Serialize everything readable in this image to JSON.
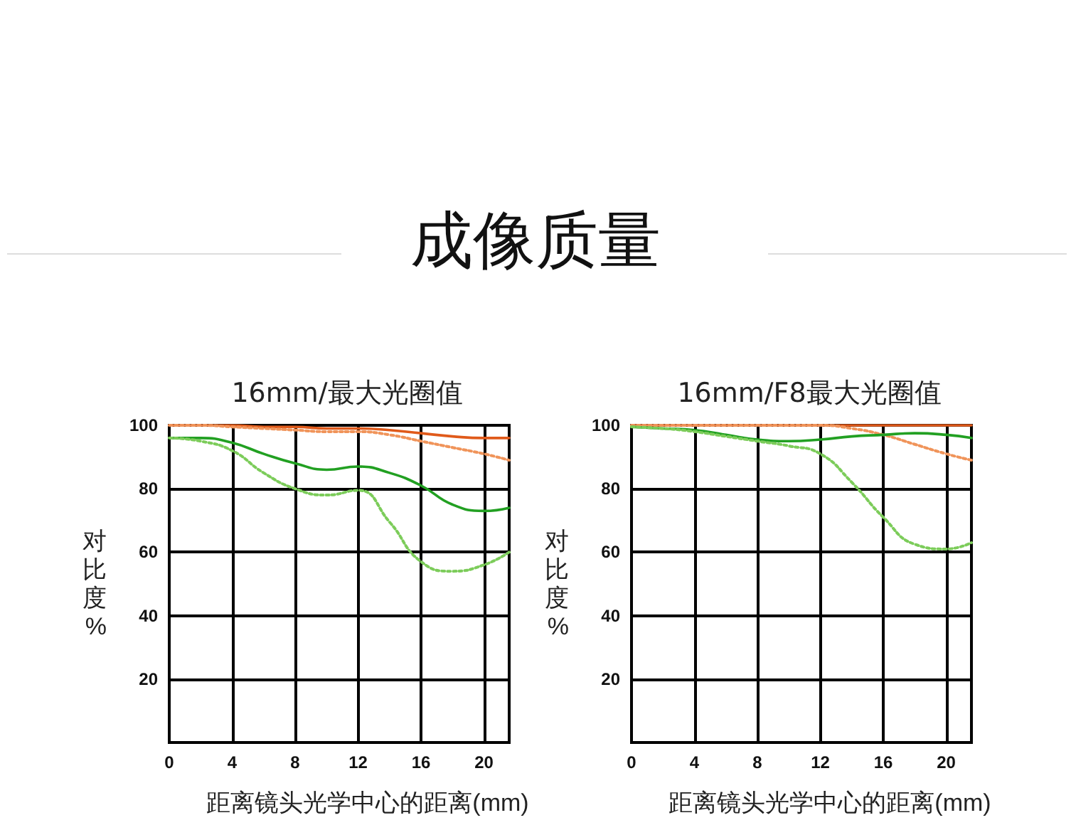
{
  "chart_data": [
    {
      "type": "other",
      "title": "成像质量"
    },
    {
      "type": "line",
      "title": "16mm/最大光圈值",
      "xlabel": "距离镜头光学中心的距离(mm)",
      "ylabel": "对比度%",
      "x": [
        0,
        2,
        4,
        6,
        8,
        10,
        12,
        14,
        16,
        18,
        20,
        21.6
      ],
      "xlim": [
        0,
        21.6
      ],
      "xticks": [
        0,
        4,
        8,
        12,
        16,
        20
      ],
      "ylim": [
        0,
        100
      ],
      "yticks": [
        {
          "value": 0,
          "label": null
        },
        20,
        40,
        60,
        80,
        100
      ],
      "grid": true,
      "marker": "none",
      "series": [
        {
          "color": "#e05a1a",
          "line_style": "solid",
          "values": [
            100,
            100,
            100,
            99.5,
            99.5,
            99,
            99,
            98.5,
            97.5,
            96.5,
            96,
            96
          ]
        },
        {
          "color": "#f0945a",
          "line_style": "dotted",
          "values": [
            100,
            100,
            99.5,
            99,
            98.5,
            98,
            98,
            97,
            95,
            93,
            91,
            89
          ]
        },
        {
          "color": "#22a022",
          "line_style": "solid",
          "values": [
            96,
            96,
            94.5,
            91,
            88,
            86,
            87,
            85,
            81,
            75,
            73,
            74
          ]
        },
        {
          "color": "#7ccc5a",
          "line_style": "dotted",
          "values": [
            96,
            95,
            92,
            85,
            80,
            78,
            79.5,
            69.5,
            57,
            54,
            56,
            60
          ]
        }
      ]
    },
    {
      "type": "line",
      "title": "16mm/F8最大光圈值",
      "xlabel": "距离镜头光学中心的距离(mm)",
      "ylabel": "对比度%",
      "x": [
        0,
        2,
        4,
        6,
        8,
        10,
        12,
        14,
        16,
        18,
        20,
        21.6
      ],
      "xlim": [
        0,
        21.6
      ],
      "xticks": [
        0,
        4,
        8,
        12,
        16,
        20
      ],
      "ylim": [
        0,
        100
      ],
      "yticks": [
        {
          "value": 0,
          "label": null
        },
        20,
        40,
        60,
        80,
        100
      ],
      "grid": true,
      "marker": "none",
      "series": [
        {
          "color": "#e05a1a",
          "line_style": "solid",
          "values": [
            100,
            100,
            100,
            100,
            100,
            100,
            100,
            100,
            100,
            100,
            100,
            100
          ]
        },
        {
          "color": "#f0945a",
          "line_style": "dotted",
          "values": [
            100,
            100,
            100,
            100,
            100,
            100,
            100,
            99,
            97,
            94,
            91,
            89
          ]
        },
        {
          "color": "#22a022",
          "line_style": "solid",
          "values": [
            99.5,
            99,
            98.5,
            97,
            95.5,
            95,
            95.5,
            96.5,
            97,
            97.5,
            97,
            96
          ]
        },
        {
          "color": "#7ccc5a",
          "line_style": "dotted",
          "values": [
            99.5,
            99,
            98,
            96.5,
            95,
            93.5,
            91,
            82,
            71,
            62.5,
            61,
            63
          ]
        }
      ]
    }
  ]
}
